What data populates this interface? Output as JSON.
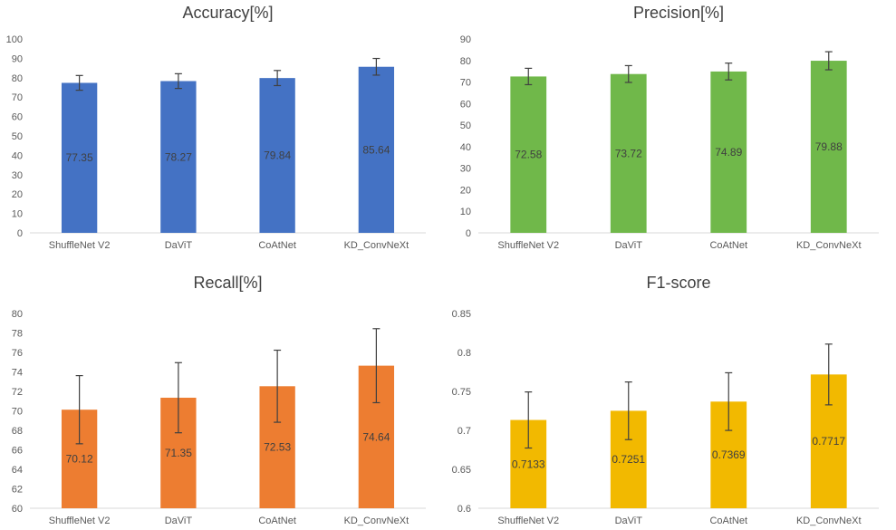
{
  "chart_data": [
    {
      "type": "bar",
      "title": "Accuracy[%]",
      "categories": [
        "ShuffleNet V2",
        "DaViT",
        "CoAtNet",
        "KD_ConvNeXt"
      ],
      "values": [
        77.35,
        78.27,
        79.84,
        85.64
      ],
      "labels": [
        "77.35",
        "78.27",
        "79.84",
        "85.64"
      ],
      "errors": [
        3.8,
        3.8,
        3.9,
        4.3
      ],
      "ylim": [
        0,
        100
      ],
      "yticks": [
        0,
        10,
        20,
        30,
        40,
        50,
        60,
        70,
        80,
        90,
        100
      ],
      "ytick_labels": [
        "0",
        "10",
        "20",
        "30",
        "40",
        "50",
        "60",
        "70",
        "80",
        "90",
        "100"
      ],
      "color": "#4472c4",
      "xlabel": "",
      "ylabel": ""
    },
    {
      "type": "bar",
      "title": "Precision[%]",
      "categories": [
        "ShuffleNet V2",
        "DaViT",
        "CoAtNet",
        "KD_ConvNeXt"
      ],
      "values": [
        72.58,
        73.72,
        74.89,
        79.88
      ],
      "labels": [
        "72.58",
        "73.72",
        "74.89",
        "79.88"
      ],
      "errors": [
        3.8,
        3.9,
        3.9,
        4.2
      ],
      "ylim": [
        0,
        90
      ],
      "yticks": [
        0,
        10,
        20,
        30,
        40,
        50,
        60,
        70,
        80,
        90
      ],
      "ytick_labels": [
        "0",
        "10",
        "20",
        "30",
        "40",
        "50",
        "60",
        "70",
        "80",
        "90"
      ],
      "color": "#70b84a",
      "xlabel": "",
      "ylabel": ""
    },
    {
      "type": "bar",
      "title": "Recall[%]",
      "categories": [
        "ShuffleNet V2",
        "DaViT",
        "CoAtNet",
        "KD_ConvNeXt"
      ],
      "values": [
        70.12,
        71.35,
        72.53,
        74.64
      ],
      "labels": [
        "70.12",
        "71.35",
        "72.53",
        "74.64"
      ],
      "errors": [
        3.5,
        3.6,
        3.7,
        3.8
      ],
      "ylim": [
        60,
        80
      ],
      "yticks": [
        60,
        62,
        64,
        66,
        68,
        70,
        72,
        74,
        76,
        78,
        80
      ],
      "ytick_labels": [
        "60",
        "62",
        "64",
        "66",
        "68",
        "70",
        "72",
        "74",
        "76",
        "78",
        "80"
      ],
      "color": "#ed7d31",
      "xlabel": "",
      "ylabel": ""
    },
    {
      "type": "bar",
      "title": "F1-score",
      "categories": [
        "ShuffleNet V2",
        "DaViT",
        "CoAtNet",
        "KD_ConvNeXt"
      ],
      "values": [
        0.7133,
        0.7251,
        0.7369,
        0.7717
      ],
      "labels": [
        "0.7133",
        "0.7251",
        "0.7369",
        "0.7717"
      ],
      "errors": [
        0.036,
        0.037,
        0.037,
        0.039
      ],
      "ylim": [
        0.6,
        0.85
      ],
      "yticks": [
        0.6,
        0.65,
        0.7,
        0.75,
        0.8,
        0.85
      ],
      "ytick_labels": [
        "0.6",
        "0.65",
        "0.7",
        "0.75",
        "0.8",
        "0.85"
      ],
      "color": "#f2b900",
      "xlabel": "",
      "ylabel": ""
    }
  ]
}
